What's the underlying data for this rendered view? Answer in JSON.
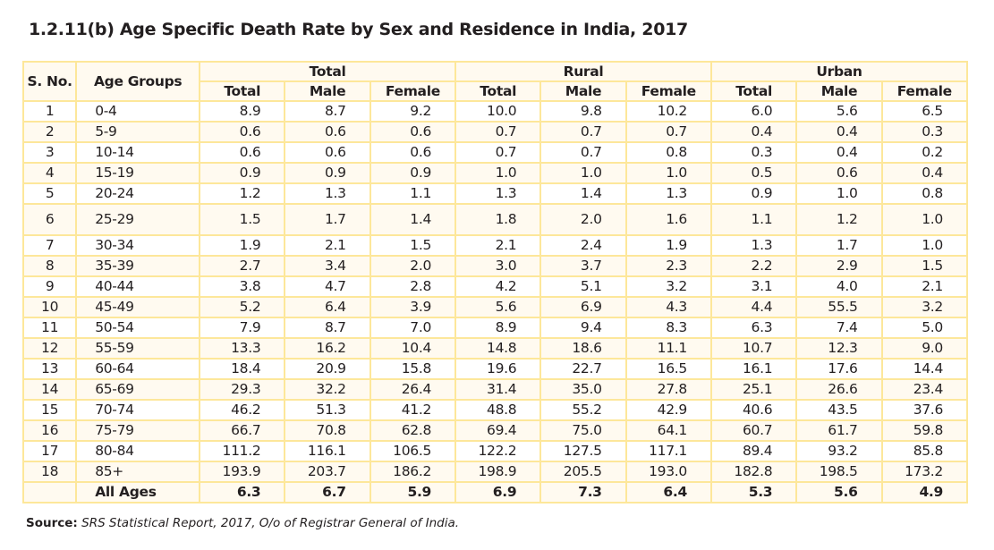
{
  "title": "1.2.11(b) Age Specific Death Rate by Sex and Residence in India, 2017",
  "headers": {
    "sno": "S. No.",
    "age": "Age Groups",
    "groups": [
      "Total",
      "Rural",
      "Urban"
    ],
    "sub": [
      "Total",
      "Male",
      "Female"
    ]
  },
  "rows": [
    {
      "sno": "1",
      "age": "0-4",
      "v": [
        "8.9",
        "8.7",
        "9.2",
        "10.0",
        "9.8",
        "10.2",
        "6.0",
        "5.6",
        "6.5"
      ]
    },
    {
      "sno": "2",
      "age": "5-9",
      "v": [
        "0.6",
        "0.6",
        "0.6",
        "0.7",
        "0.7",
        "0.7",
        "0.4",
        "0.4",
        "0.3"
      ]
    },
    {
      "sno": "3",
      "age": "10-14",
      "v": [
        "0.6",
        "0.6",
        "0.6",
        "0.7",
        "0.7",
        "0.8",
        "0.3",
        "0.4",
        "0.2"
      ]
    },
    {
      "sno": "4",
      "age": "15-19",
      "v": [
        "0.9",
        "0.9",
        "0.9",
        "1.0",
        "1.0",
        "1.0",
        "0.5",
        "0.6",
        "0.4"
      ]
    },
    {
      "sno": "5",
      "age": "20-24",
      "v": [
        "1.2",
        "1.3",
        "1.1",
        "1.3",
        "1.4",
        "1.3",
        "0.9",
        "1.0",
        "0.8"
      ]
    },
    {
      "sno": "6",
      "age": "25-29",
      "v": [
        "1.5",
        "1.7",
        "1.4",
        "1.8",
        "2.0",
        "1.6",
        "1.1",
        "1.2",
        "1.0"
      ]
    },
    {
      "sno": "7",
      "age": "30-34",
      "v": [
        "1.9",
        "2.1",
        "1.5",
        "2.1",
        "2.4",
        "1.9",
        "1.3",
        "1.7",
        "1.0"
      ]
    },
    {
      "sno": "8",
      "age": "35-39",
      "v": [
        "2.7",
        "3.4",
        "2.0",
        "3.0",
        "3.7",
        "2.3",
        "2.2",
        "2.9",
        "1.5"
      ]
    },
    {
      "sno": "9",
      "age": "40-44",
      "v": [
        "3.8",
        "4.7",
        "2.8",
        "4.2",
        "5.1",
        "3.2",
        "3.1",
        "4.0",
        "2.1"
      ]
    },
    {
      "sno": "10",
      "age": "45-49",
      "v": [
        "5.2",
        "6.4",
        "3.9",
        "5.6",
        "6.9",
        "4.3",
        "4.4",
        "55.5",
        "3.2"
      ]
    },
    {
      "sno": "11",
      "age": "50-54",
      "v": [
        "7.9",
        "8.7",
        "7.0",
        "8.9",
        "9.4",
        "8.3",
        "6.3",
        "7.4",
        "5.0"
      ]
    },
    {
      "sno": "12",
      "age": "55-59",
      "v": [
        "13.3",
        "16.2",
        "10.4",
        "14.8",
        "18.6",
        "11.1",
        "10.7",
        "12.3",
        "9.0"
      ]
    },
    {
      "sno": "13",
      "age": "60-64",
      "v": [
        "18.4",
        "20.9",
        "15.8",
        "19.6",
        "22.7",
        "16.5",
        "16.1",
        "17.6",
        "14.4"
      ]
    },
    {
      "sno": "14",
      "age": "65-69",
      "v": [
        "29.3",
        "32.2",
        "26.4",
        "31.4",
        "35.0",
        "27.8",
        "25.1",
        "26.6",
        "23.4"
      ]
    },
    {
      "sno": "15",
      "age": "70-74",
      "v": [
        "46.2",
        "51.3",
        "41.2",
        "48.8",
        "55.2",
        "42.9",
        "40.6",
        "43.5",
        "37.6"
      ]
    },
    {
      "sno": "16",
      "age": "75-79",
      "v": [
        "66.7",
        "70.8",
        "62.8",
        "69.4",
        "75.0",
        "64.1",
        "60.7",
        "61.7",
        "59.8"
      ]
    },
    {
      "sno": "17",
      "age": "80-84",
      "v": [
        "111.2",
        "116.1",
        "106.5",
        "122.2",
        "127.5",
        "117.1",
        "89.4",
        "93.2",
        "85.8"
      ]
    },
    {
      "sno": "18",
      "age": "85+",
      "v": [
        "193.9",
        "203.7",
        "186.2",
        "198.9",
        "205.5",
        "193.0",
        "182.8",
        "198.5",
        "173.2"
      ]
    }
  ],
  "all_ages": {
    "label": "All Ages",
    "v": [
      "6.3",
      "6.7",
      "5.9",
      "6.9",
      "7.3",
      "6.4",
      "5.3",
      "5.6",
      "4.9"
    ]
  },
  "source": {
    "label": "Source:",
    "text": "SRS Statistical Report, 2017, O/o of Registrar General of India."
  }
}
